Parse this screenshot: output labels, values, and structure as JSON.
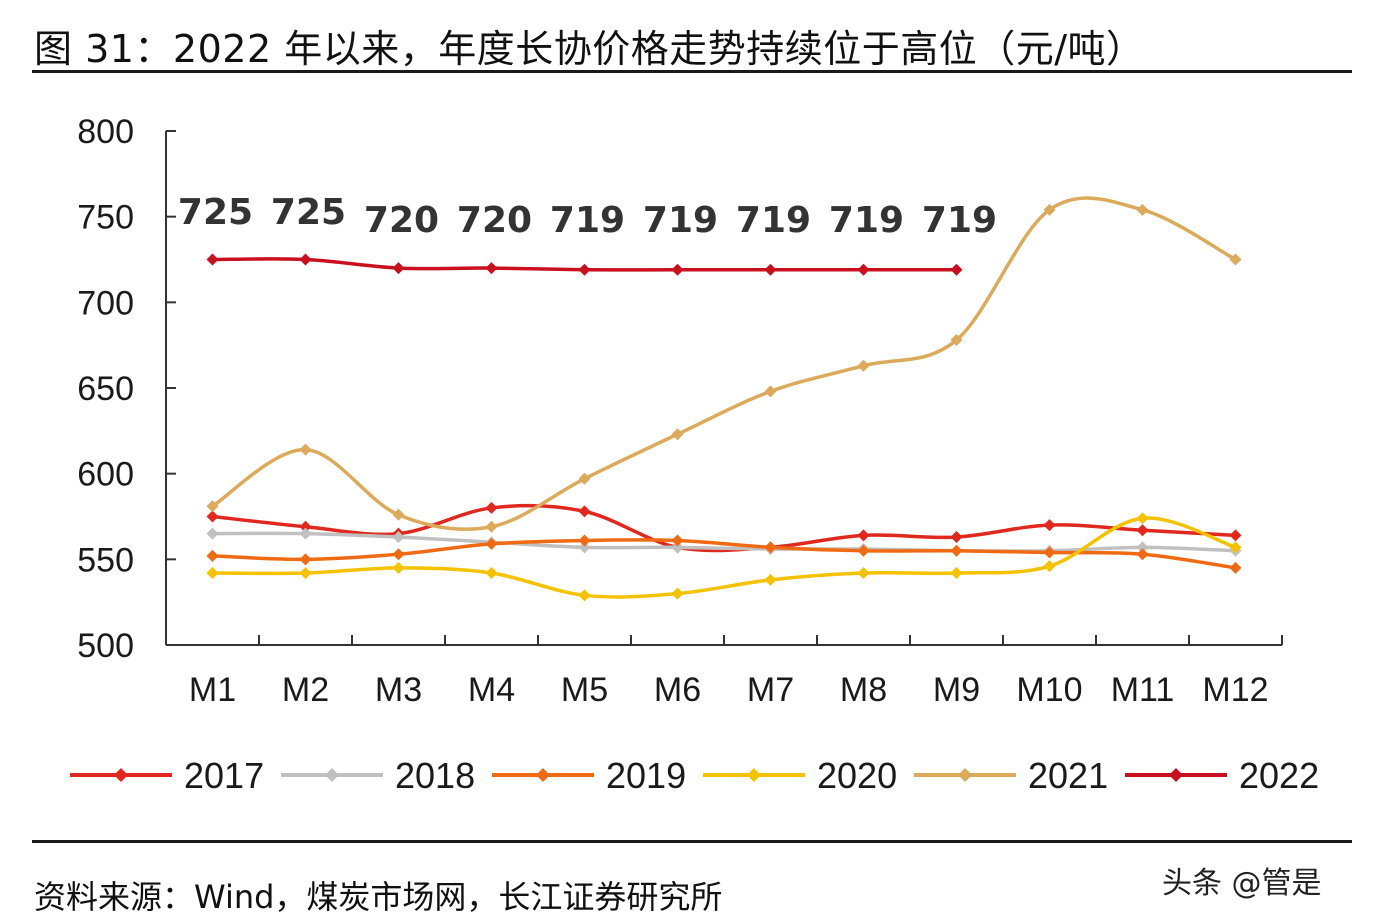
{
  "header": {
    "title": "图 31：2022 年以来，年度长协价格走势持续位于高位（元/吨）"
  },
  "footer": {
    "source": "资料来源：Wind，煤炭市场网，长江证券研究所",
    "watermark": "头条 @管是"
  },
  "chart_data": {
    "type": "line",
    "title": "",
    "xlabel": "",
    "ylabel": "",
    "categories": [
      "M1",
      "M2",
      "M3",
      "M4",
      "M5",
      "M6",
      "M7",
      "M8",
      "M9",
      "M10",
      "M11",
      "M12"
    ],
    "ylim": [
      500,
      800
    ],
    "yticks": [
      500,
      550,
      600,
      650,
      700,
      750,
      800
    ],
    "legend_position": "bottom",
    "series": [
      {
        "name": "2017",
        "color": "#e0281e",
        "values": [
          575,
          569,
          565,
          580,
          578,
          557,
          557,
          564,
          563,
          570,
          567,
          564
        ]
      },
      {
        "name": "2018",
        "color": "#c0c0c0",
        "values": [
          565,
          565,
          563,
          560,
          557,
          557,
          556,
          556,
          555,
          555,
          557,
          555
        ]
      },
      {
        "name": "2019",
        "color": "#f06a13",
        "values": [
          552,
          550,
          553,
          559,
          561,
          561,
          557,
          555,
          555,
          554,
          553,
          545
        ]
      },
      {
        "name": "2020",
        "color": "#f5c200",
        "values": [
          542,
          542,
          545,
          542,
          529,
          530,
          538,
          542,
          542,
          546,
          574,
          557
        ]
      },
      {
        "name": "2021",
        "color": "#dcaa5a",
        "values": [
          581,
          614,
          576,
          569,
          597,
          623,
          648,
          663,
          678,
          754,
          754,
          725
        ]
      },
      {
        "name": "2022",
        "color": "#c8101e",
        "values": [
          725,
          725,
          720,
          720,
          719,
          719,
          719,
          719,
          719,
          null,
          null,
          null
        ]
      }
    ],
    "data_labels": {
      "series": "2022",
      "labels": [
        "725",
        "725",
        "720",
        "720",
        "719",
        "719",
        "719",
        "719",
        "719"
      ]
    }
  }
}
